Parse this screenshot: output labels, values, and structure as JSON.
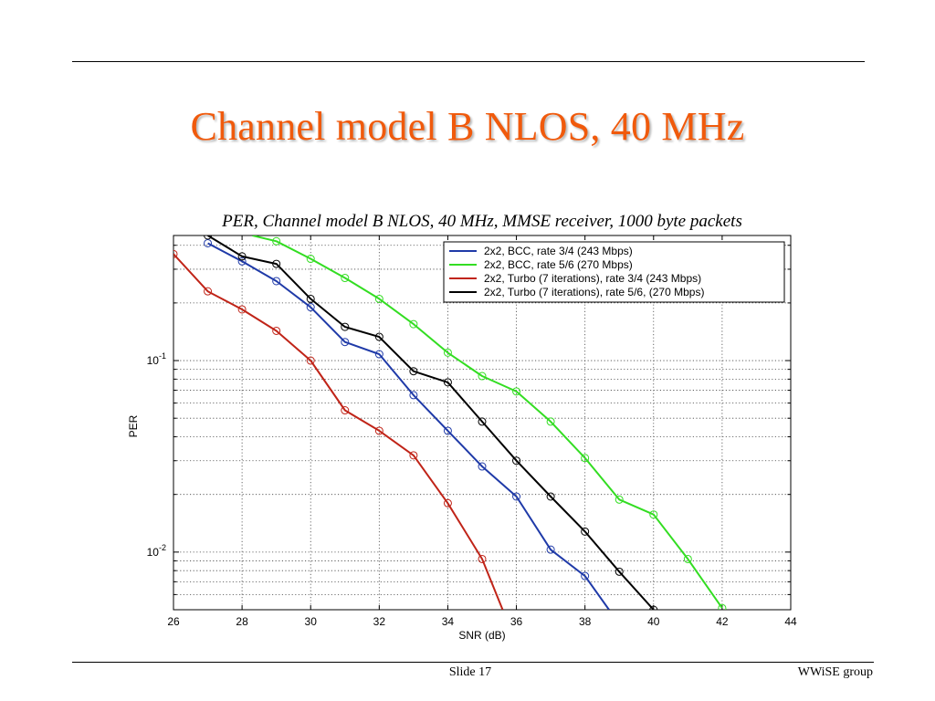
{
  "slide": {
    "title": "Channel model B NLOS, 40 MHz",
    "slide_number": "Slide 17",
    "footer": "WWiSE group"
  },
  "chart_data": {
    "type": "line",
    "title": "PER, Channel model B NLOS, 40 MHz, MMSE receiver, 1000 byte packets",
    "xlabel": "SNR (dB)",
    "ylabel": "PER",
    "xlim": [
      26,
      44
    ],
    "ylim": [
      0.005,
      0.45
    ],
    "yscale": "log",
    "grid": true,
    "legend_position": "top-right",
    "x_ticks": [
      26,
      28,
      30,
      32,
      34,
      36,
      38,
      40,
      42,
      44
    ],
    "y_tick_labels": [
      {
        "value": 0.1,
        "base": "10",
        "exp": "-1"
      },
      {
        "value": 0.01,
        "base": "10",
        "exp": "-2"
      }
    ],
    "series": [
      {
        "name": "2x2, BCC, rate 3/4 (243 Mbps)",
        "color": "#1f3aa8",
        "marker": "circle",
        "x": [
          27,
          28,
          29,
          30,
          31,
          32,
          33,
          34,
          35,
          36,
          37,
          38,
          38.7
        ],
        "y": [
          0.41,
          0.33,
          0.26,
          0.19,
          0.125,
          0.108,
          0.066,
          0.043,
          0.028,
          0.0195,
          0.0103,
          0.0075,
          0.005
        ]
      },
      {
        "name": "2x2, BCC, rate 5/6 (270 Mbps)",
        "color": "#33dd22",
        "marker": "circle",
        "x": [
          28.3,
          29,
          30,
          31,
          32,
          33,
          34,
          35,
          36,
          37,
          38,
          39,
          40,
          41,
          42
        ],
        "y": [
          0.45,
          0.42,
          0.34,
          0.27,
          0.21,
          0.155,
          0.11,
          0.083,
          0.069,
          0.048,
          0.031,
          0.0188,
          0.0157,
          0.0092,
          0.0051
        ]
      },
      {
        "name": "2x2, Turbo (7 iterations), rate 3/4 (243 Mbps)",
        "color": "#c02418",
        "marker": "circle",
        "x": [
          26,
          27,
          28,
          29,
          30,
          31,
          32,
          33,
          34,
          35,
          35.6
        ],
        "y": [
          0.36,
          0.23,
          0.185,
          0.143,
          0.1,
          0.055,
          0.043,
          0.032,
          0.018,
          0.0092,
          0.005
        ]
      },
      {
        "name": "2x2, Turbo (7 iterations), rate 5/6, (270 Mbps)",
        "color": "#000000",
        "marker": "circle",
        "x": [
          27,
          28,
          29,
          30,
          31,
          32,
          33,
          34,
          35,
          36,
          37,
          38,
          39,
          40
        ],
        "y": [
          0.45,
          0.35,
          0.32,
          0.21,
          0.15,
          0.133,
          0.088,
          0.077,
          0.048,
          0.03,
          0.0195,
          0.0128,
          0.0079,
          0.005
        ]
      }
    ]
  }
}
